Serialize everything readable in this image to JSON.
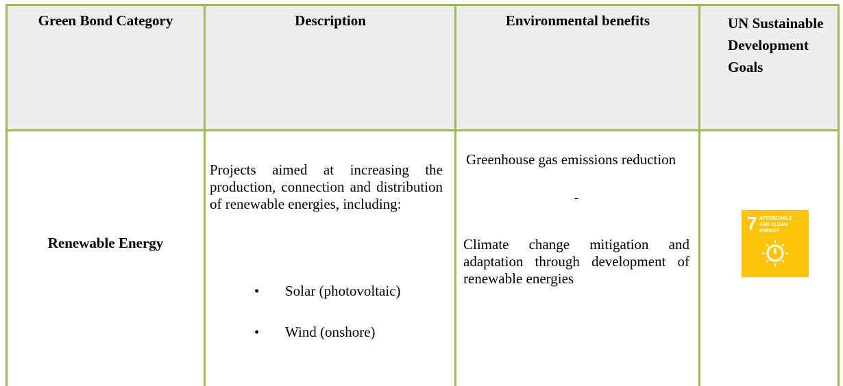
{
  "table": {
    "header": [
      "Green Bond Category",
      "Description",
      "Environmental benefits",
      "UN Sustainable Development Goals"
    ],
    "rows": [
      {
        "category": "Renewable Energy",
        "description": {
          "intro": "Projects aimed at increasing the production, connection and distribution of renewable energies, including:",
          "bullets": [
            "Solar (photovoltaic)",
            "Wind (onshore)"
          ]
        },
        "benefits": [
          "Greenhouse gas emissions reduction",
          "-",
          "Climate change mitigation and adaptation through development of renewable energies"
        ],
        "sdg": {
          "number": "7",
          "label": "AFFORDABLE AND CLEAN ENERGY"
        }
      }
    ]
  }
}
